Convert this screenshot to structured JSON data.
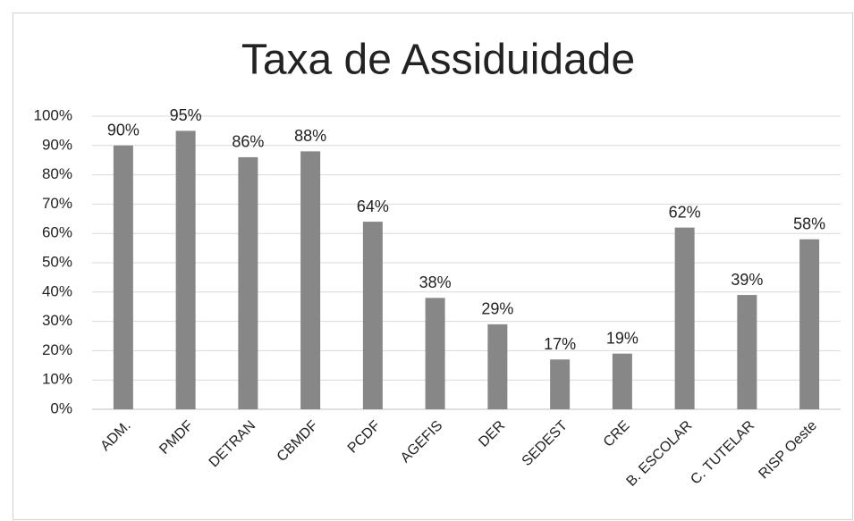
{
  "chart_data": {
    "type": "bar",
    "title": "Taxa de Assiduidade",
    "categories": [
      "ADM.",
      "PMDF",
      "DETRAN",
      "CBMDF",
      "PCDF",
      "AGEFIS",
      "DER",
      "SEDEST",
      "CRE",
      "B. ESCOLAR",
      "C. TUTELAR",
      "RISP Oeste"
    ],
    "values": [
      90,
      95,
      86,
      88,
      64,
      38,
      29,
      17,
      19,
      62,
      39,
      58
    ],
    "value_labels": [
      "90%",
      "95%",
      "86%",
      "88%",
      "64%",
      "38%",
      "29%",
      "17%",
      "19%",
      "62%",
      "39%",
      "58%"
    ],
    "color": "#878787",
    "ylim": [
      0,
      100
    ],
    "yticks": [
      {
        "value": 0,
        "label": "0%"
      },
      {
        "value": 10,
        "label": "10%"
      },
      {
        "value": 20,
        "label": "20%"
      },
      {
        "value": 30,
        "label": "30%"
      },
      {
        "value": 40,
        "label": "40%"
      },
      {
        "value": 50,
        "label": "50%"
      },
      {
        "value": 60,
        "label": "60%"
      },
      {
        "value": 70,
        "label": "70%"
      },
      {
        "value": 80,
        "label": "80%"
      },
      {
        "value": 90,
        "label": "90%"
      },
      {
        "value": 100,
        "label": "100%"
      }
    ],
    "grid": true
  }
}
